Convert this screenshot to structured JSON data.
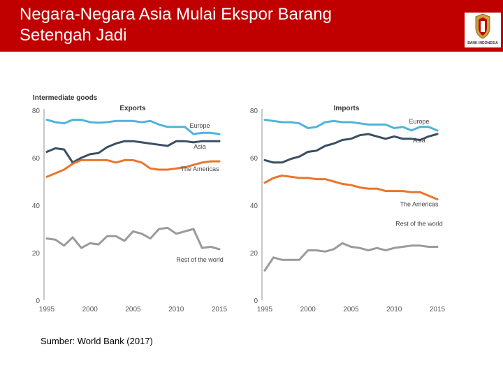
{
  "slide": {
    "title_line1": "Negara-Negara Asia Mulai Ekspor Barang",
    "title_line2": "Setengah Jadi",
    "source": "Sumber: World Bank (2017)",
    "logo_text": "BANK INDONESIA",
    "colors": {
      "header": "#c00000",
      "europe": "#4fb3dc",
      "asia": "#3a4f63",
      "americas": "#e8762c",
      "rest": "#9a9a9a"
    }
  },
  "chart_data": {
    "type": "line",
    "title": "Intermediate goods",
    "ylim": [
      0,
      80
    ],
    "yticks": [
      0,
      20,
      40,
      60,
      80
    ],
    "xlim": [
      1995,
      2015
    ],
    "xticks": [
      1995,
      2000,
      2005,
      2010,
      2015
    ],
    "panels": [
      {
        "title": "Exports",
        "series": [
          {
            "name": "Europe",
            "color": "#4fb3dc",
            "x": [
              1995,
              1996,
              1997,
              1998,
              1999,
              2000,
              2001,
              2002,
              2003,
              2004,
              2005,
              2006,
              2007,
              2008,
              2009,
              2010,
              2011,
              2012,
              2013,
              2014,
              2015
            ],
            "values": [
              76,
              75,
              74.5,
              76,
              76,
              75,
              74.8,
              75,
              75.5,
              75.5,
              75.5,
              75,
              75.5,
              74,
              73,
              73,
              73,
              70,
              70.5,
              70.5,
              70
            ]
          },
          {
            "name": "Asia",
            "color": "#3a4f63",
            "x": [
              1995,
              1996,
              1997,
              1998,
              1999,
              2000,
              2001,
              2002,
              2003,
              2004,
              2005,
              2006,
              2007,
              2008,
              2009,
              2010,
              2011,
              2012,
              2013,
              2014,
              2015
            ],
            "values": [
              62.5,
              64,
              63.5,
              58,
              60,
              61.5,
              62,
              64.5,
              66,
              67,
              67,
              66.5,
              66,
              65.5,
              65,
              67,
              67,
              66.5,
              67,
              67,
              67
            ]
          },
          {
            "name": "The Americas",
            "color": "#e8762c",
            "x": [
              1995,
              1996,
              1997,
              1998,
              1999,
              2000,
              2001,
              2002,
              2003,
              2004,
              2005,
              2006,
              2007,
              2008,
              2009,
              2010,
              2011,
              2012,
              2013,
              2014,
              2015
            ],
            "values": [
              52,
              53.5,
              55,
              57.5,
              59,
              59,
              59,
              59,
              58,
              59,
              59,
              58,
              55.5,
              55,
              55,
              55.5,
              56,
              57,
              58,
              58.5,
              58.5
            ]
          },
          {
            "name": "Rest of the world",
            "color": "#9a9a9a",
            "x": [
              1995,
              1996,
              1997,
              1998,
              1999,
              2000,
              2001,
              2002,
              2003,
              2004,
              2005,
              2006,
              2007,
              2008,
              2009,
              2010,
              2011,
              2012,
              2013,
              2014,
              2015
            ],
            "values": [
              26,
              25.5,
              23,
              26.5,
              22,
              24,
              23.5,
              27,
              27,
              25,
              29,
              28,
              26,
              30,
              30.5,
              28,
              29,
              30,
              22,
              22.5,
              21.5
            ]
          }
        ]
      },
      {
        "title": "Imports",
        "series": [
          {
            "name": "Europe",
            "color": "#4fb3dc",
            "x": [
              1995,
              1996,
              1997,
              1998,
              1999,
              2000,
              2001,
              2002,
              2003,
              2004,
              2005,
              2006,
              2007,
              2008,
              2009,
              2010,
              2011,
              2012,
              2013,
              2014,
              2015
            ],
            "values": [
              76,
              75.5,
              75,
              75,
              74.5,
              72.5,
              73,
              75,
              75.5,
              75,
              75,
              74.5,
              74,
              74,
              74,
              72.5,
              73,
              71.5,
              73,
              73,
              71.5
            ]
          },
          {
            "name": "Asia",
            "color": "#3a4f63",
            "x": [
              1995,
              1996,
              1997,
              1998,
              1999,
              2000,
              2001,
              2002,
              2003,
              2004,
              2005,
              2006,
              2007,
              2008,
              2009,
              2010,
              2011,
              2012,
              2013,
              2014,
              2015
            ],
            "values": [
              59,
              58,
              58,
              59.5,
              60.5,
              62.5,
              63,
              65,
              66,
              67.5,
              68,
              69.5,
              70,
              69,
              68,
              69,
              68,
              68,
              67.5,
              69,
              70
            ]
          },
          {
            "name": "The Americas",
            "color": "#e8762c",
            "x": [
              1995,
              1996,
              1997,
              1998,
              1999,
              2000,
              2001,
              2002,
              2003,
              2004,
              2005,
              2006,
              2007,
              2008,
              2009,
              2010,
              2011,
              2012,
              2013,
              2014,
              2015
            ],
            "values": [
              49.5,
              51.5,
              52.5,
              52,
              51.5,
              51.5,
              51,
              51,
              50,
              49,
              48.5,
              47.5,
              47,
              47,
              46,
              46,
              46,
              45.5,
              45.5,
              44,
              42.5
            ]
          },
          {
            "name": "Rest of the world",
            "color": "#9a9a9a",
            "x": [
              1995,
              1996,
              1997,
              1998,
              1999,
              2000,
              2001,
              2002,
              2003,
              2004,
              2005,
              2006,
              2007,
              2008,
              2009,
              2010,
              2011,
              2012,
              2013,
              2014,
              2015
            ],
            "values": [
              12.5,
              18,
              17,
              17,
              17,
              21,
              21,
              20.5,
              21.5,
              24,
              22.5,
              22,
              21,
              22,
              21,
              22,
              22.5,
              23,
              23,
              22.5,
              22.5
            ]
          }
        ]
      }
    ]
  }
}
